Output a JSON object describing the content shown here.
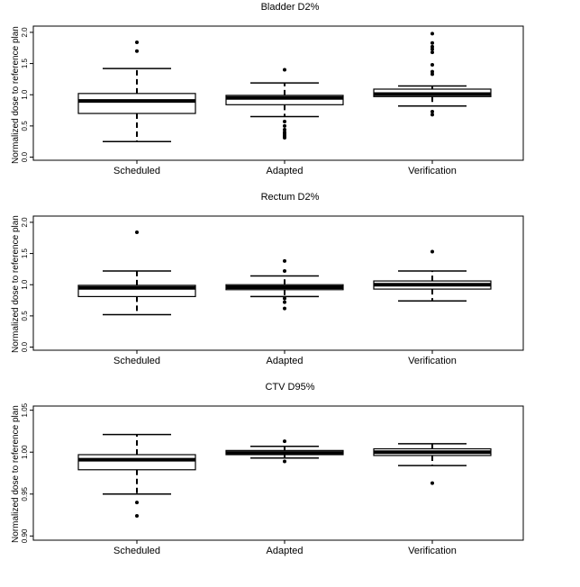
{
  "chart_data": [
    {
      "type": "box",
      "title": "Bladder D2%",
      "ylabel": "Normalized dose to reference plan",
      "categories": [
        "Scheduled",
        "Adapted",
        "Verification"
      ],
      "ylim": [
        -0.05,
        2.1
      ],
      "yticks": [
        0.0,
        0.5,
        1.0,
        1.5,
        2.0
      ],
      "ytick_labels": [
        "0.0",
        "0.5",
        "1.0",
        "1.5",
        "2.0"
      ],
      "boxes": [
        {
          "whisker_low": 0.25,
          "q1": 0.7,
          "median": 0.9,
          "q3": 1.02,
          "whisker_high": 1.42,
          "outliers": [
            1.7,
            1.84
          ]
        },
        {
          "whisker_low": 0.65,
          "q1": 0.84,
          "median": 0.95,
          "q3": 0.99,
          "whisker_high": 1.19,
          "outliers": [
            1.4,
            0.57,
            0.5,
            0.44,
            0.4,
            0.37,
            0.34,
            0.31
          ]
        },
        {
          "whisker_low": 0.82,
          "q1": 0.97,
          "median": 1.01,
          "q3": 1.09,
          "whisker_high": 1.14,
          "outliers": [
            1.98,
            1.83,
            1.77,
            1.73,
            1.68,
            1.48,
            1.37,
            1.33,
            0.73,
            0.68
          ]
        }
      ]
    },
    {
      "type": "box",
      "title": "Rectum D2%",
      "ylabel": "Normalized dose to reference plan",
      "categories": [
        "Scheduled",
        "Adapted",
        "Verification"
      ],
      "ylim": [
        -0.05,
        2.1
      ],
      "yticks": [
        0.0,
        0.5,
        1.0,
        1.5,
        2.0
      ],
      "ytick_labels": [
        "0.0",
        "0.5",
        "1.0",
        "1.5",
        "2.0"
      ],
      "boxes": [
        {
          "whisker_low": 0.52,
          "q1": 0.81,
          "median": 0.95,
          "q3": 0.99,
          "whisker_high": 1.22,
          "outliers": [
            1.84
          ]
        },
        {
          "whisker_low": 0.81,
          "q1": 0.92,
          "median": 0.96,
          "q3": 1.0,
          "whisker_high": 1.14,
          "outliers": [
            1.38,
            1.22,
            0.78,
            0.72,
            0.62
          ]
        },
        {
          "whisker_low": 0.74,
          "q1": 0.93,
          "median": 1.0,
          "q3": 1.06,
          "whisker_high": 1.22,
          "outliers": [
            1.53
          ]
        }
      ]
    },
    {
      "type": "box",
      "title": "CTV D95%",
      "ylabel": "Normalized dose to reference plan",
      "categories": [
        "Scheduled",
        "Adapted",
        "Verification"
      ],
      "ylim": [
        0.895,
        1.055
      ],
      "yticks": [
        0.9,
        0.95,
        1.0,
        1.05
      ],
      "ytick_labels": [
        "0.90",
        "0.95",
        "1.00",
        "1.05"
      ],
      "boxes": [
        {
          "whisker_low": 0.95,
          "q1": 0.979,
          "median": 0.991,
          "q3": 0.997,
          "whisker_high": 1.021,
          "outliers": [
            0.94,
            0.924
          ]
        },
        {
          "whisker_low": 0.993,
          "q1": 0.997,
          "median": 0.999,
          "q3": 1.002,
          "whisker_high": 1.007,
          "outliers": [
            1.013,
            0.989
          ]
        },
        {
          "whisker_low": 0.984,
          "q1": 0.996,
          "median": 1.0,
          "q3": 1.004,
          "whisker_high": 1.01,
          "outliers": [
            0.963
          ]
        }
      ]
    }
  ]
}
